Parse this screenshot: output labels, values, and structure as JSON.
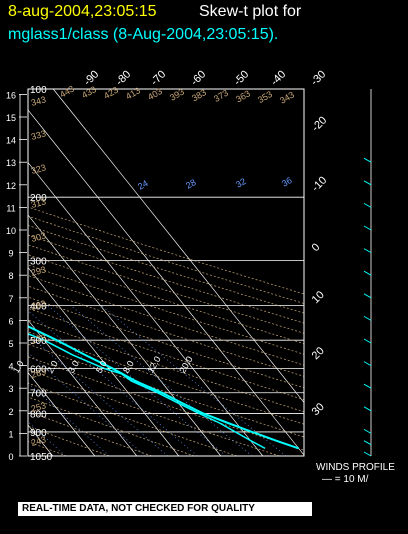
{
  "header": {
    "datetime": "8-aug-2004,23:05:15",
    "label": "Skew-t plot for",
    "subtitle": "mglass1/class (8-Aug-2004,23:05:15)."
  },
  "footer": {
    "notice": "REAL-TIME DATA, NOT CHECKED FOR QUALITY"
  },
  "winds": {
    "label": "WINDS PROFILE",
    "scale": "— = 10 M/"
  },
  "colors": {
    "title_datetime": "#ffff00",
    "title_label": "#ffffff",
    "subtitle": "#00ffff",
    "temperature": "#00ffff",
    "dewpoint": "#00ffff",
    "isotherms": "#ffffff",
    "theta": "#c8a878",
    "mixing_ratio": "#6699ff",
    "isobars": "#ffffff"
  },
  "chart_data": {
    "type": "line",
    "chart_kind": "skew-t log-p",
    "pressure_levels_hPa": [
      100,
      200,
      300,
      400,
      500,
      600,
      700,
      800,
      900,
      1050
    ],
    "height_ticks_km": [
      "0",
      "1",
      "2",
      "3",
      "4",
      "5",
      "6",
      "7",
      "8",
      "9",
      "10",
      "11",
      "12",
      "13",
      "14",
      "15",
      "16"
    ],
    "temperature_ticks_C_top": [
      "-90",
      "-80",
      "-70",
      "-60",
      "-50",
      "-40",
      "-30"
    ],
    "temperature_ticks_C_right": [
      "-20",
      "-10",
      "0",
      "10",
      "20",
      "30"
    ],
    "theta_labels_K": [
      "243",
      "253",
      "263",
      "273",
      "283",
      "293",
      "303",
      "313",
      "323",
      "333",
      "343",
      "353",
      "363",
      "373",
      "383",
      "393",
      "403",
      "413",
      "423",
      "433",
      "443"
    ],
    "theta_labels_left": [
      "343",
      "333",
      "323",
      "313",
      "303",
      "293",
      "283",
      "273",
      "263",
      "253",
      "243"
    ],
    "mixing_ratio_labels": [
      "0.4",
      "1.0",
      "2.0",
      "3.0",
      "5.0",
      "8.0",
      "12.0",
      "20.0"
    ],
    "mixing_ratio_labels_top": [
      "24",
      "28",
      "32",
      "36"
    ],
    "temperature_profile": {
      "name": "temperature",
      "pressure": [
        1000,
        950,
        900,
        850,
        800,
        750,
        700,
        650,
        600,
        550,
        500,
        450,
        400,
        350,
        300,
        250,
        200,
        175
      ],
      "temp_C": [
        30,
        26,
        22,
        18,
        14,
        11,
        8,
        4,
        1,
        -3,
        -7,
        -12,
        -18,
        -25,
        -32,
        -41,
        -52,
        -58
      ]
    },
    "dewpoint_profile": {
      "name": "dewpoint",
      "pressure": [
        1000,
        950,
        900,
        850,
        800,
        750,
        700,
        650,
        620,
        600,
        550,
        500,
        470,
        450,
        420,
        400,
        380,
        350,
        320,
        300,
        280,
        250,
        220,
        200,
        185,
        175
      ],
      "dewp_C": [
        22,
        20,
        18,
        16,
        13,
        10,
        7,
        3,
        2,
        -1,
        -6,
        -10,
        -14,
        -16,
        -22,
        -25,
        -30,
        -36,
        -38,
        -44,
        -50,
        -52,
        -56,
        -62,
        -66,
        -68
      ]
    },
    "wind_barb_heights_km": [
      0,
      0.5,
      1,
      2,
      3,
      4,
      5,
      6,
      7,
      8,
      9,
      10,
      11,
      12,
      13
    ]
  }
}
